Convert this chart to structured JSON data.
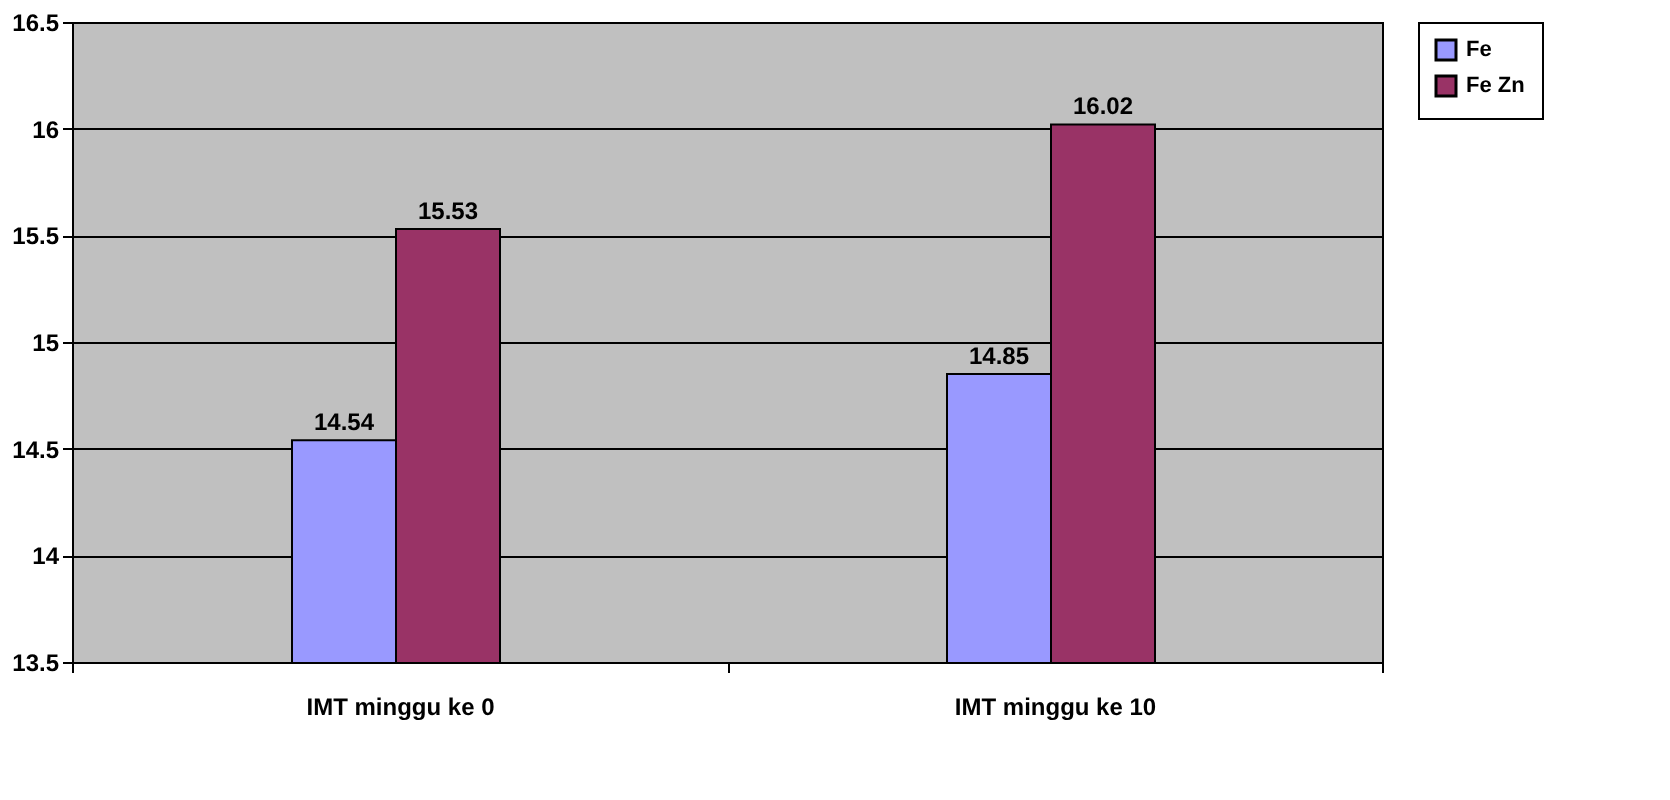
{
  "chart_data": {
    "type": "bar",
    "categories": [
      "IMT minggu ke 0",
      "IMT minggu ke 10"
    ],
    "series": [
      {
        "name": "Fe",
        "color": "#9999ff",
        "values": [
          14.54,
          14.85
        ]
      },
      {
        "name": "Fe Zn",
        "color": "#993366",
        "values": [
          15.53,
          16.02
        ]
      }
    ],
    "ylim": [
      13.5,
      16.5
    ],
    "yticks": [
      13.5,
      {
        "value": 14,
        "label": "14"
      },
      14.5,
      {
        "value": 15,
        "label": "15"
      },
      15.5,
      {
        "value": 16,
        "label": "16"
      },
      16.5
    ],
    "grid": "y",
    "legend": "right",
    "data_labels": true
  }
}
